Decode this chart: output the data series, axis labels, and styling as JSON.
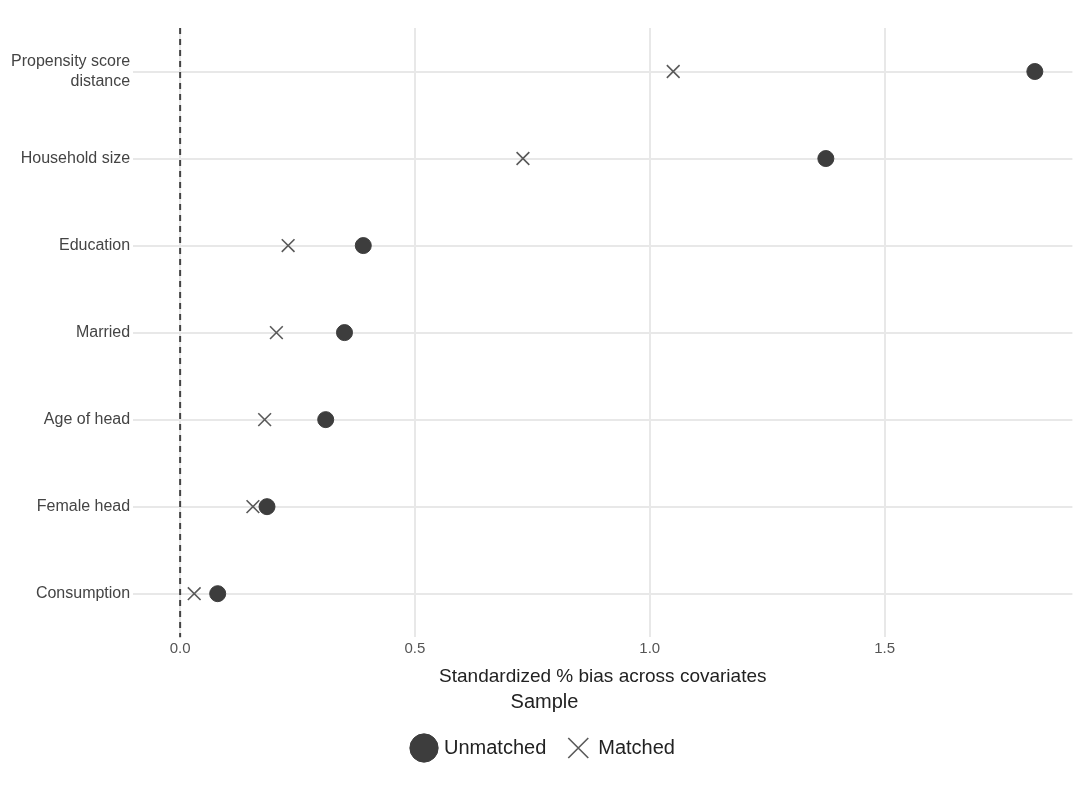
{
  "chart_data": {
    "type": "scatter",
    "xlabel": "Standardized % bias across covariates",
    "legend_title": "Sample",
    "categories": [
      "Propensity score distance",
      "Household size",
      "Education",
      "Married",
      "Age of head",
      "Female head",
      "Consumption"
    ],
    "series": [
      {
        "name": "Unmatched",
        "color": "#3d3d3d",
        "marker": "circle",
        "values": [
          1.82,
          1.375,
          0.39,
          0.35,
          0.31,
          0.185,
          0.08
        ]
      },
      {
        "name": "Matched",
        "color": "#5a5a5a",
        "marker": "cross",
        "values": [
          1.05,
          0.73,
          0.23,
          0.205,
          0.18,
          0.155,
          0.03
        ]
      }
    ],
    "xlim": [
      -0.1,
      1.9
    ],
    "xticks": [
      {
        "value": 0,
        "label": "0.0"
      },
      0.5,
      {
        "value": 1,
        "label": "1.0"
      },
      1.5
    ],
    "ref_lines": [
      {
        "axis": "x",
        "value": 0,
        "color": "#444444",
        "line_style": "dashed"
      }
    ],
    "grid": true,
    "legend": "bottom",
    "orientation": "horizontal"
  }
}
